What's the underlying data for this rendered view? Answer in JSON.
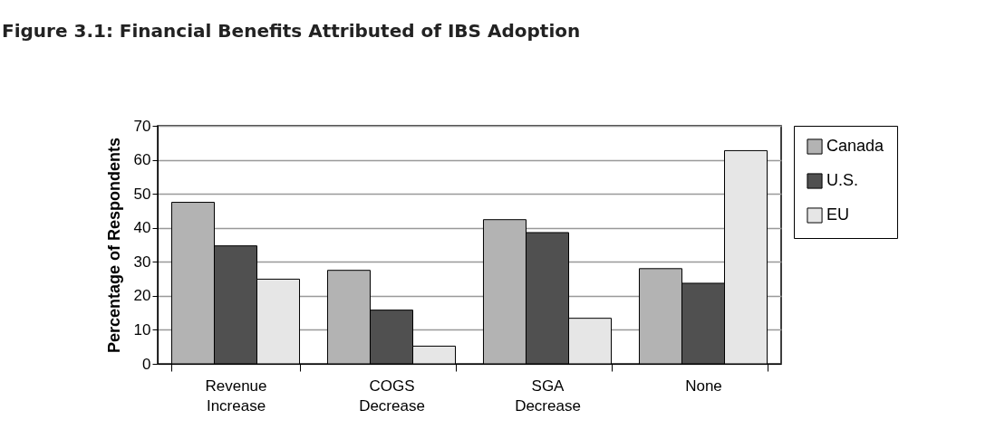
{
  "chart_data": {
    "type": "bar",
    "title": "Figure 3.1: Financial Benefits Attributed of IBS Adoption",
    "ylabel": "Percentage of Respondents",
    "categories": [
      "Revenue Increase",
      "COGS Decrease",
      "SGA Decrease",
      "None"
    ],
    "series": [
      {
        "name": "Canada",
        "color": "#b3b3b3",
        "values": [
          47.5,
          27.5,
          42.4,
          28.0
        ]
      },
      {
        "name": "U.S.",
        "color": "#505050",
        "values": [
          34.7,
          15.8,
          38.6,
          23.7
        ]
      },
      {
        "name": "EU",
        "color": "#e6e6e6",
        "values": [
          24.9,
          5.2,
          13.4,
          62.7
        ]
      }
    ],
    "ylim": [
      0,
      70
    ],
    "yticks": [
      0,
      10,
      20,
      30,
      40,
      50,
      60,
      70
    ],
    "grid": "y",
    "legend": "right"
  }
}
